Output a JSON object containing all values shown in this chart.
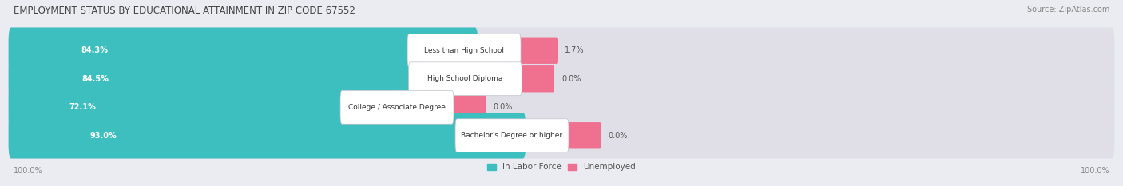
{
  "title": "EMPLOYMENT STATUS BY EDUCATIONAL ATTAINMENT IN ZIP CODE 67552",
  "source": "Source: ZipAtlas.com",
  "categories": [
    "Less than High School",
    "High School Diploma",
    "College / Associate Degree",
    "Bachelor's Degree or higher"
  ],
  "labor_force": [
    84.3,
    84.5,
    72.1,
    93.0
  ],
  "unemployed": [
    1.7,
    0.0,
    0.0,
    0.0
  ],
  "labor_force_color": "#3dbfbf",
  "unemployed_color": "#f07090",
  "bg_color": "#ebebf2",
  "bar_bg_color": "#e0dfe8",
  "title_fontsize": 8.5,
  "source_fontsize": 7,
  "label_fontsize": 7,
  "tick_fontsize": 7,
  "legend_fontsize": 7.5
}
